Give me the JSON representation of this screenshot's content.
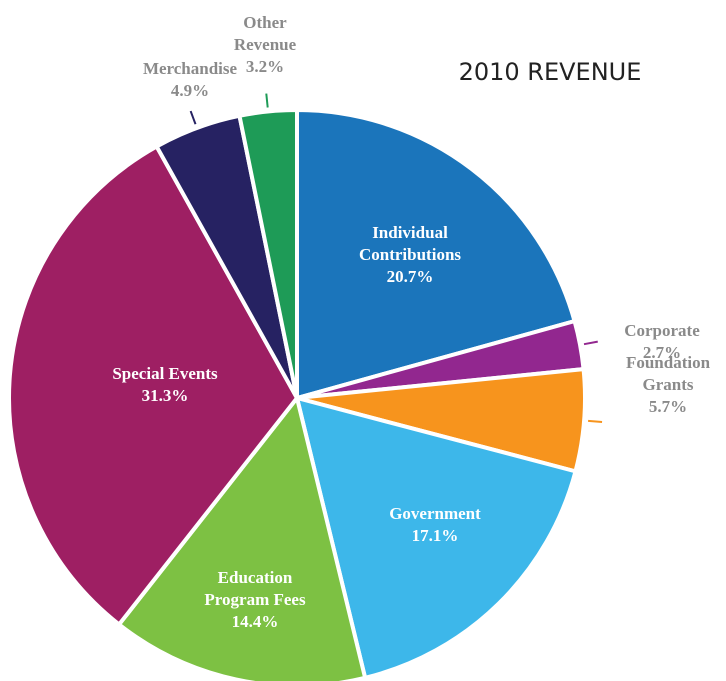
{
  "chart_data": {
    "type": "pie",
    "title": "2010 REVENUE",
    "categories": [
      "Individual Contributions",
      "Corporate",
      "Foundation Grants",
      "Government",
      "Education Program Fees",
      "Special Events",
      "Merchandise",
      "Other Revenue"
    ],
    "values": [
      20.7,
      2.7,
      5.7,
      17.1,
      14.4,
      31.3,
      4.9,
      3.2
    ],
    "value_labels": [
      "20.7%",
      "2.7%",
      "5.7%",
      "17.1%",
      "14.4%",
      "31.3%",
      "4.9%",
      "3.2%"
    ],
    "colors": [
      "#1b75bb",
      "#92278f",
      "#f7941d",
      "#3db7ea",
      "#7dc143",
      "#9e1f63",
      "#262262",
      "#1e9b57"
    ]
  }
}
